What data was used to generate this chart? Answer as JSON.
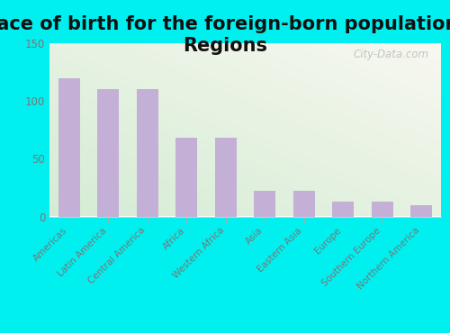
{
  "title": "Place of birth for the foreign-born population -\nRegions",
  "categories": [
    "Americas",
    "Latin America",
    "Central America",
    "Africa",
    "Western Africa",
    "Asia",
    "Eastern Asia",
    "Europe",
    "Southern Europe",
    "Northern America"
  ],
  "values": [
    120,
    110,
    110,
    68,
    68,
    22,
    22,
    13,
    13,
    10
  ],
  "bar_color": "#c4afd6",
  "ylim": [
    0,
    150
  ],
  "yticks": [
    0,
    50,
    100,
    150
  ],
  "bg_top_left": "#d4ecd4",
  "bg_bottom_right": "#f8f8f0",
  "outer_background": "#00f0f0",
  "title_fontsize": 15,
  "tick_label_color": "#777777",
  "watermark": "City-Data.com",
  "watermark_color": "#bbbbbb"
}
